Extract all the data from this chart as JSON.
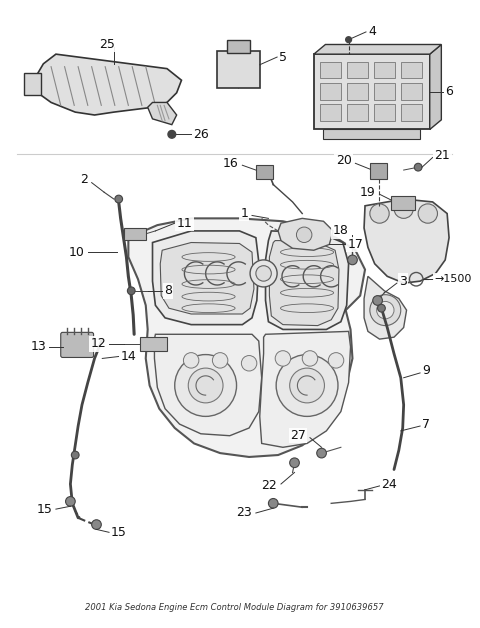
{
  "title": "2001 Kia Sedona Engine Ecm Control Module Diagram for 3910639657",
  "bg_color": "#ffffff",
  "line_color": "#333333",
  "label_color": "#111111",
  "font_size": 9,
  "font_size_title": 6
}
